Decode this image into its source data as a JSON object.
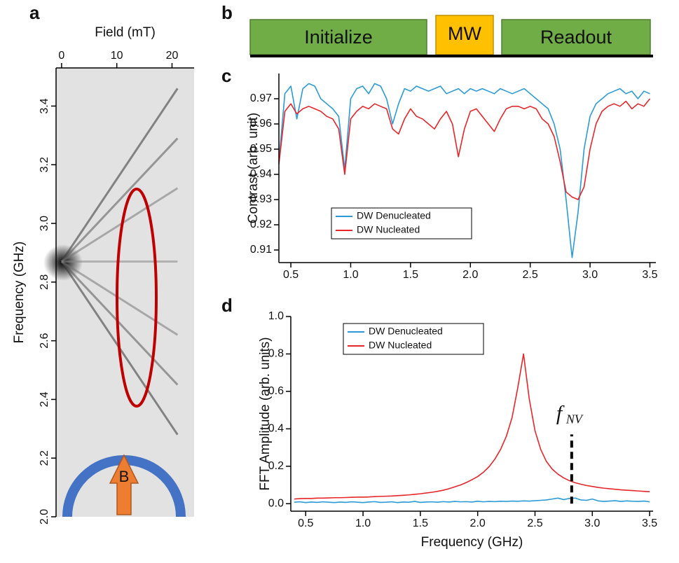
{
  "pulse_sequence": {
    "panel": "b",
    "steps": [
      "Initialize",
      "MW",
      "Readout"
    ]
  },
  "chart_data": [
    {
      "panel": "a",
      "type": "line",
      "xlabel": "Field (mT)",
      "ylabel": "Frequency (GHz)",
      "x_axis": "top",
      "xlim": [
        -1,
        24
      ],
      "ylim": [
        2.0,
        3.53
      ],
      "xticks": [
        0,
        10,
        20
      ],
      "yticks": [
        {
          "value": 2,
          "label": "2.0"
        },
        2.2,
        2.4,
        2.6,
        2.8,
        {
          "value": 3,
          "label": "3.0"
        },
        3.2,
        3.4
      ],
      "annotation": "B",
      "series": [
        {
          "color": "#333333",
          "x": [
            0,
            21
          ],
          "values": [
            2.87,
            3.46
          ]
        },
        {
          "color": "#333333",
          "x": [
            0,
            21
          ],
          "values": [
            2.87,
            2.28
          ]
        },
        {
          "color": "#555555",
          "x": [
            0,
            21
          ],
          "values": [
            2.87,
            3.29
          ]
        },
        {
          "color": "#555555",
          "x": [
            0,
            21
          ],
          "values": [
            2.87,
            2.45
          ]
        },
        {
          "color": "#777777",
          "x": [
            0,
            21
          ],
          "values": [
            2.87,
            3.12
          ]
        },
        {
          "color": "#777777",
          "x": [
            0,
            21
          ],
          "values": [
            2.87,
            2.62
          ]
        },
        {
          "color": "#888888",
          "x": [
            0,
            21
          ],
          "values": [
            2.87,
            2.87
          ]
        }
      ]
    },
    {
      "panel": "c",
      "type": "line",
      "ylabel": "Contrast (arb. unit)",
      "legend": "lower left",
      "xlim": [
        0.4,
        3.55
      ],
      "ylim": [
        0.905,
        0.98
      ],
      "xticks": [
        0.5,
        {
          "value": 1,
          "label": "1.0"
        },
        1.5,
        {
          "value": 2,
          "label": "2.0"
        },
        2.5,
        {
          "value": 3,
          "label": "3.0"
        },
        3.5
      ],
      "yticks": [
        0.91,
        0.92,
        0.93,
        0.94,
        0.95,
        0.96,
        0.97
      ],
      "x": [
        0.4,
        0.45,
        0.5,
        0.55,
        0.6,
        0.65,
        0.7,
        0.75,
        0.8,
        0.85,
        0.9,
        0.95,
        1.0,
        1.05,
        1.1,
        1.15,
        1.2,
        1.25,
        1.3,
        1.35,
        1.4,
        1.45,
        1.5,
        1.55,
        1.6,
        1.65,
        1.7,
        1.75,
        1.8,
        1.85,
        1.9,
        1.95,
        2.0,
        2.05,
        2.1,
        2.15,
        2.2,
        2.25,
        2.3,
        2.35,
        2.4,
        2.45,
        2.5,
        2.55,
        2.6,
        2.65,
        2.7,
        2.75,
        2.8,
        2.85,
        2.9,
        2.95,
        3.0,
        3.05,
        3.1,
        3.15,
        3.2,
        3.25,
        3.3,
        3.35,
        3.4,
        3.45,
        3.5
      ],
      "series": [
        {
          "name": "DW Denucleated",
          "color": "#2b9bd8",
          "values": [
            0.945,
            0.972,
            0.975,
            0.962,
            0.974,
            0.976,
            0.975,
            0.97,
            0.968,
            0.966,
            0.963,
            0.942,
            0.97,
            0.974,
            0.975,
            0.972,
            0.976,
            0.975,
            0.97,
            0.96,
            0.968,
            0.974,
            0.973,
            0.975,
            0.974,
            0.973,
            0.974,
            0.975,
            0.972,
            0.973,
            0.974,
            0.972,
            0.974,
            0.973,
            0.974,
            0.973,
            0.972,
            0.974,
            0.973,
            0.972,
            0.973,
            0.974,
            0.972,
            0.97,
            0.968,
            0.966,
            0.96,
            0.95,
            0.93,
            0.907,
            0.925,
            0.95,
            0.963,
            0.968,
            0.97,
            0.972,
            0.973,
            0.974,
            0.972,
            0.973,
            0.97,
            0.973,
            0.972
          ]
        },
        {
          "name": "DW Nucleated",
          "color": "#e8262a",
          "values": [
            0.944,
            0.965,
            0.968,
            0.964,
            0.966,
            0.967,
            0.966,
            0.965,
            0.963,
            0.962,
            0.958,
            0.94,
            0.962,
            0.965,
            0.967,
            0.966,
            0.968,
            0.967,
            0.966,
            0.958,
            0.956,
            0.962,
            0.966,
            0.963,
            0.962,
            0.96,
            0.958,
            0.962,
            0.965,
            0.96,
            0.947,
            0.958,
            0.965,
            0.966,
            0.963,
            0.96,
            0.957,
            0.962,
            0.966,
            0.967,
            0.967,
            0.966,
            0.967,
            0.966,
            0.962,
            0.96,
            0.955,
            0.945,
            0.933,
            0.931,
            0.93,
            0.935,
            0.95,
            0.96,
            0.965,
            0.967,
            0.968,
            0.967,
            0.969,
            0.966,
            0.968,
            0.967,
            0.97
          ]
        }
      ]
    },
    {
      "panel": "d",
      "type": "line",
      "xlabel": "Frequency (GHz)",
      "ylabel": "FFT Amplitude (arb. units)",
      "legend": "upper left",
      "xlim": [
        0.37,
        3.53
      ],
      "ylim": [
        -0.04,
        1.0
      ],
      "xticks": [
        0.5,
        {
          "value": 1,
          "label": "1.0"
        },
        1.5,
        {
          "value": 2,
          "label": "2.0"
        },
        2.5,
        {
          "value": 3,
          "label": "3.0"
        },
        3.5
      ],
      "yticks": [
        {
          "value": 0,
          "label": "0.0"
        },
        0.2,
        0.4,
        0.6,
        0.8,
        {
          "value": 1,
          "label": "1.0"
        }
      ],
      "annotation": {
        "text": "f",
        "subscript": "NV",
        "x": 2.82,
        "y": 0.37
      },
      "x": [
        0.4,
        0.45,
        0.5,
        0.55,
        0.6,
        0.65,
        0.7,
        0.75,
        0.8,
        0.85,
        0.9,
        0.95,
        1.0,
        1.05,
        1.1,
        1.15,
        1.2,
        1.25,
        1.3,
        1.35,
        1.4,
        1.45,
        1.5,
        1.55,
        1.6,
        1.65,
        1.7,
        1.75,
        1.8,
        1.85,
        1.9,
        1.95,
        2.0,
        2.05,
        2.1,
        2.15,
        2.2,
        2.25,
        2.3,
        2.35,
        2.4,
        2.45,
        2.5,
        2.55,
        2.6,
        2.65,
        2.7,
        2.75,
        2.8,
        2.85,
        2.9,
        2.95,
        3.0,
        3.05,
        3.1,
        3.15,
        3.2,
        3.25,
        3.3,
        3.35,
        3.4,
        3.45,
        3.5
      ],
      "series": [
        {
          "name": "DW Denucleated",
          "color": "#2b9bd8",
          "values": [
            0.008,
            0.01,
            0.006,
            0.009,
            0.007,
            0.01,
            0.008,
            0.006,
            0.009,
            0.007,
            0.01,
            0.008,
            0.006,
            0.009,
            0.011,
            0.007,
            0.008,
            0.01,
            0.006,
            0.009,
            0.008,
            0.012,
            0.007,
            0.009,
            0.01,
            0.008,
            0.011,
            0.009,
            0.012,
            0.01,
            0.011,
            0.009,
            0.013,
            0.01,
            0.012,
            0.011,
            0.013,
            0.012,
            0.014,
            0.013,
            0.015,
            0.014,
            0.016,
            0.018,
            0.02,
            0.025,
            0.03,
            0.022,
            0.028,
            0.03,
            0.02,
            0.018,
            0.025,
            0.015,
            0.012,
            0.014,
            0.016,
            0.012,
            0.015,
            0.013,
            0.012,
            0.014,
            0.01
          ]
        },
        {
          "name": "DW Nucleated",
          "color": "#e8262a",
          "values": [
            0.025,
            0.027,
            0.028,
            0.028,
            0.03,
            0.03,
            0.031,
            0.032,
            0.032,
            0.033,
            0.034,
            0.035,
            0.035,
            0.036,
            0.038,
            0.039,
            0.04,
            0.041,
            0.043,
            0.045,
            0.047,
            0.05,
            0.053,
            0.057,
            0.061,
            0.066,
            0.072,
            0.08,
            0.09,
            0.1,
            0.113,
            0.128,
            0.145,
            0.168,
            0.198,
            0.238,
            0.29,
            0.36,
            0.46,
            0.62,
            0.8,
            0.56,
            0.39,
            0.29,
            0.225,
            0.185,
            0.158,
            0.138,
            0.123,
            0.112,
            0.104,
            0.097,
            0.092,
            0.087,
            0.083,
            0.08,
            0.077,
            0.074,
            0.072,
            0.07,
            0.068,
            0.066,
            0.064
          ]
        }
      ]
    }
  ]
}
